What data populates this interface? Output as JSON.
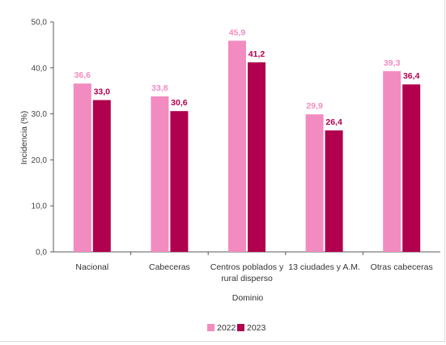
{
  "chart_data": {
    "type": "bar",
    "title": "",
    "ylabel": "Incidencia (%)",
    "xlabel": "Dominio",
    "ylim": [
      0,
      50
    ],
    "yticks": [
      0,
      10,
      20,
      30,
      40,
      50
    ],
    "ytick_labels": [
      "0,0",
      "10,0",
      "20,0",
      "30,0",
      "40,0",
      "50,0"
    ],
    "categories": [
      [
        "Nacional"
      ],
      [
        "Cabeceras"
      ],
      [
        "Centros poblados y",
        "rural disperso"
      ],
      [
        "13 ciudades y A.M."
      ],
      [
        "Otras cabeceras"
      ]
    ],
    "series": [
      {
        "name": "2022",
        "color": "#f28cc0",
        "values": [
          36.6,
          33.8,
          45.9,
          29.9,
          39.3
        ],
        "labels": [
          "36,6",
          "33,8",
          "45,9",
          "29,9",
          "39,3"
        ]
      },
      {
        "name": "2023",
        "color": "#b0004e",
        "values": [
          33.0,
          30.6,
          41.2,
          26.4,
          36.4
        ],
        "labels": [
          "33,0",
          "30,6",
          "41,2",
          "26,4",
          "36,4"
        ]
      }
    ],
    "grid": false,
    "legend_position": "bottom"
  }
}
